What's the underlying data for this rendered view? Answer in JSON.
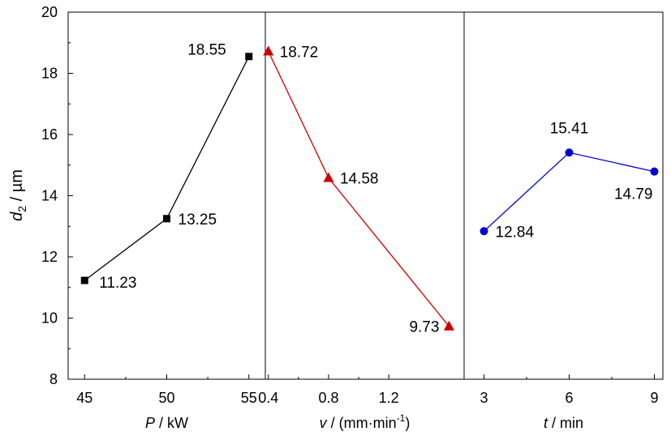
{
  "chart_data": {
    "type": "line",
    "ylabel": {
      "var": "d",
      "sub": "2",
      "rest": " / µm"
    },
    "ylim": [
      8,
      20
    ],
    "yticks": [
      "8",
      "10",
      "12",
      "14",
      "16",
      "18",
      "20"
    ],
    "grid": false,
    "panels": [
      {
        "xlabel": {
          "var": "P",
          "rest": " / kW",
          "sup": ""
        },
        "xlim": [
          44,
          56
        ],
        "xticks": [
          45,
          50,
          55
        ],
        "xtick_labels": [
          "45",
          "50",
          "55"
        ],
        "color": "#000000",
        "marker": "square",
        "points": [
          {
            "x": 45,
            "y": 11.23,
            "label": "11.23",
            "pos": "lower-right"
          },
          {
            "x": 50,
            "y": 13.25,
            "label": "13.25",
            "pos": "right"
          },
          {
            "x": 55,
            "y": 18.55,
            "label": "18.55",
            "pos": "upper-left"
          }
        ]
      },
      {
        "xlabel": {
          "var": "v",
          "rest": " / (mm·min",
          "sup": "-1",
          "after": ")"
        },
        "xlim": [
          0.38,
          1.7
        ],
        "xticks": [
          0.4,
          0.8,
          1.2
        ],
        "xtick_labels": [
          "0.4",
          "0.8",
          "1.2"
        ],
        "color": "#cc0000",
        "marker": "triangle",
        "points": [
          {
            "x": 0.4,
            "y": 18.72,
            "label": "18.72",
            "pos": "right"
          },
          {
            "x": 0.8,
            "y": 14.58,
            "label": "14.58",
            "pos": "right"
          },
          {
            "x": 1.6,
            "y": 9.73,
            "label": "9.73",
            "pos": "left"
          }
        ]
      },
      {
        "xlabel": {
          "var": "t",
          "rest": " / min",
          "sup": ""
        },
        "xlim": [
          2.3,
          9.3
        ],
        "xticks": [
          3,
          6,
          9
        ],
        "xtick_labels": [
          "3",
          "6",
          "9"
        ],
        "color": "#0000cc",
        "marker": "circle",
        "points": [
          {
            "x": 3,
            "y": 12.84,
            "label": "12.84",
            "pos": "right"
          },
          {
            "x": 6,
            "y": 15.41,
            "label": "15.41",
            "pos": "above"
          },
          {
            "x": 9,
            "y": 14.79,
            "label": "14.79",
            "pos": "lower-left"
          }
        ]
      }
    ]
  }
}
